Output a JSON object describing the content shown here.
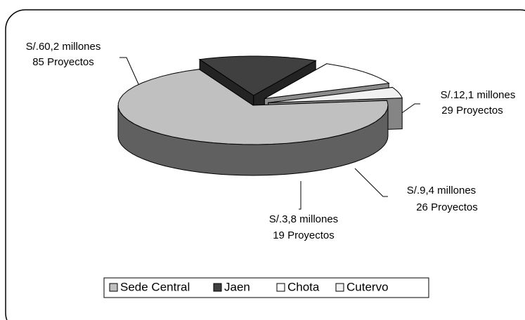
{
  "chart_data": {
    "type": "pie3d",
    "categories": [
      "Sede Central",
      "Jaen",
      "Chota",
      "Cutervo"
    ],
    "values": [
      60.2,
      12.1,
      9.4,
      3.8
    ],
    "value_labels": [
      "S/.60,2 millones",
      "S/.12,1 millones",
      "S/.9,4 millones",
      "S/.3,8 millones"
    ],
    "project_labels": [
      "85 Proyectos",
      "29 Proyectos",
      "26 Proyectos",
      "19 Proyectos"
    ],
    "colors": [
      "#c0c0c0",
      "#404040",
      "#ffffff",
      "#f2f2f2"
    ],
    "legend": "bottom"
  }
}
